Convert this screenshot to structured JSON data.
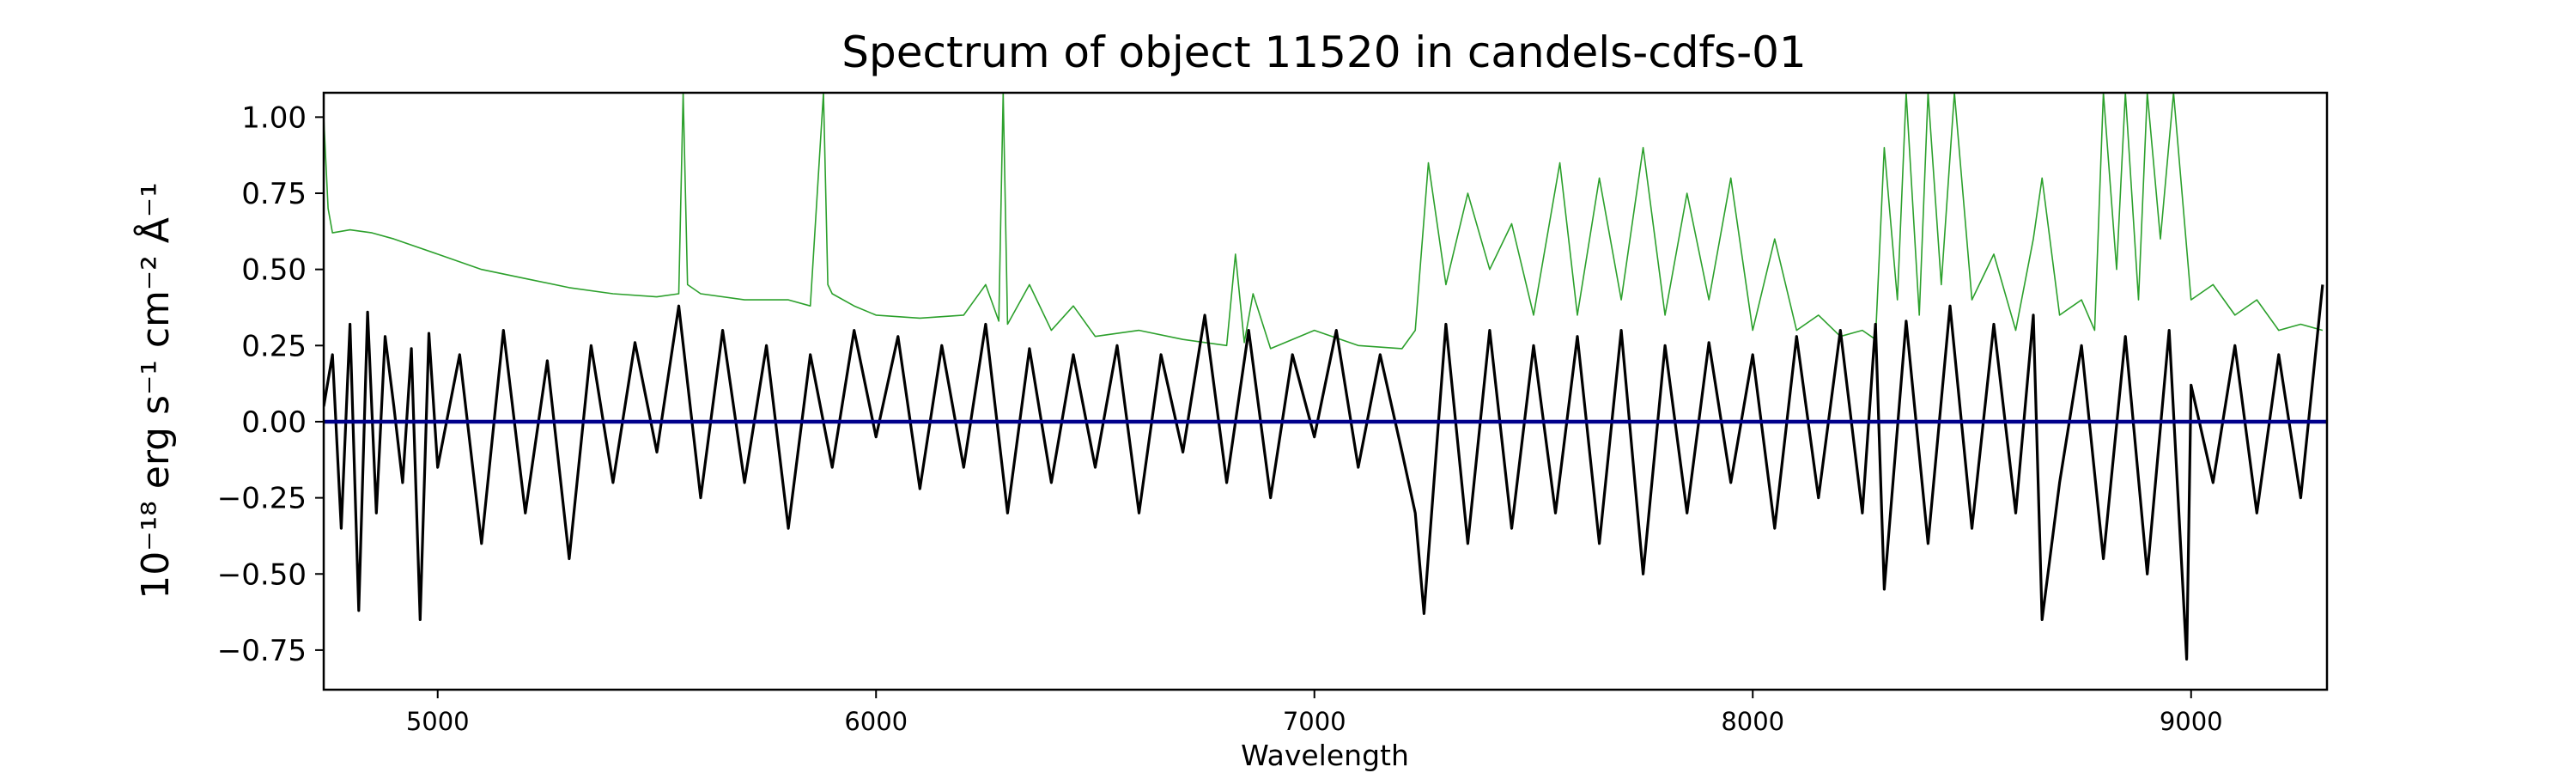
{
  "chart_data": {
    "type": "line",
    "title": "Spectrum of object 11520 in candels-cdfs-01",
    "xlabel": "Wavelength",
    "ylabel": "10⁻¹⁸ erg s⁻¹ cm⁻² Å⁻¹",
    "xlim": [
      4740,
      9310
    ],
    "ylim": [
      -0.88,
      1.08
    ],
    "xticks": [
      5000,
      6000,
      7000,
      8000,
      9000
    ],
    "xtick_labels": [
      "5000",
      "6000",
      "7000",
      "8000",
      "9000"
    ],
    "yticks": [
      -0.75,
      -0.5,
      -0.25,
      0.0,
      0.25,
      0.5,
      0.75,
      1.0
    ],
    "ytick_labels": [
      "−0.75",
      "−0.50",
      "−0.25",
      "0.00",
      "0.25",
      "0.50",
      "0.75",
      "1.00"
    ],
    "grid": false,
    "legend": false,
    "colors": {
      "flux": "#000000",
      "noise": "#2ca02c",
      "zero": "#00008b"
    },
    "series": [
      {
        "role": "flux",
        "x": [
          4740,
          4760,
          4780,
          4800,
          4820,
          4840,
          4860,
          4880,
          4900,
          4920,
          4940,
          4960,
          4980,
          5000,
          5050,
          5100,
          5150,
          5200,
          5250,
          5300,
          5350,
          5400,
          5450,
          5500,
          5550,
          5600,
          5650,
          5700,
          5750,
          5800,
          5850,
          5900,
          5950,
          6000,
          6050,
          6100,
          6150,
          6200,
          6250,
          6300,
          6350,
          6400,
          6450,
          6500,
          6550,
          6600,
          6650,
          6700,
          6750,
          6800,
          6850,
          6900,
          6950,
          7000,
          7050,
          7100,
          7150,
          7200,
          7230,
          7250,
          7300,
          7350,
          7400,
          7450,
          7500,
          7550,
          7600,
          7650,
          7700,
          7750,
          7800,
          7850,
          7900,
          7950,
          8000,
          8050,
          8100,
          8150,
          8200,
          8250,
          8280,
          8300,
          8350,
          8400,
          8450,
          8500,
          8550,
          8600,
          8640,
          8660,
          8700,
          8750,
          8800,
          8850,
          8900,
          8950,
          8990,
          9000,
          9050,
          9100,
          9150,
          9200,
          9250,
          9300
        ],
        "y": [
          0.05,
          0.22,
          -0.35,
          0.32,
          -0.62,
          0.36,
          -0.3,
          0.28,
          0.05,
          -0.2,
          0.24,
          -0.65,
          0.29,
          -0.15,
          0.22,
          -0.4,
          0.3,
          -0.3,
          0.2,
          -0.45,
          0.25,
          -0.2,
          0.26,
          -0.1,
          0.38,
          -0.25,
          0.3,
          -0.2,
          0.25,
          -0.35,
          0.22,
          -0.15,
          0.3,
          -0.05,
          0.28,
          -0.22,
          0.25,
          -0.15,
          0.32,
          -0.3,
          0.24,
          -0.2,
          0.22,
          -0.15,
          0.25,
          -0.3,
          0.22,
          -0.1,
          0.35,
          -0.2,
          0.3,
          -0.25,
          0.22,
          -0.05,
          0.3,
          -0.15,
          0.22,
          -0.1,
          -0.3,
          -0.63,
          0.32,
          -0.4,
          0.3,
          -0.35,
          0.25,
          -0.3,
          0.28,
          -0.4,
          0.3,
          -0.5,
          0.25,
          -0.3,
          0.26,
          -0.2,
          0.22,
          -0.35,
          0.28,
          -0.25,
          0.3,
          -0.3,
          0.32,
          -0.55,
          0.33,
          -0.4,
          0.38,
          -0.35,
          0.32,
          -0.3,
          0.35,
          -0.65,
          -0.2,
          0.25,
          -0.45,
          0.28,
          -0.5,
          0.3,
          -0.78,
          0.12,
          -0.2,
          0.25,
          -0.3,
          0.22,
          -0.25,
          0.45
        ]
      },
      {
        "role": "noise",
        "x": [
          4740,
          4750,
          4760,
          4800,
          4850,
          4900,
          5000,
          5100,
          5200,
          5300,
          5400,
          5500,
          5550,
          5560,
          5570,
          5600,
          5700,
          5800,
          5850,
          5880,
          5890,
          5900,
          5950,
          6000,
          6100,
          6200,
          6250,
          6280,
          6290,
          6300,
          6350,
          6400,
          6450,
          6500,
          6600,
          6700,
          6800,
          6820,
          6840,
          6860,
          6900,
          7000,
          7100,
          7200,
          7230,
          7260,
          7300,
          7350,
          7400,
          7450,
          7500,
          7560,
          7600,
          7650,
          7700,
          7750,
          7800,
          7850,
          7900,
          7950,
          8000,
          8050,
          8100,
          8150,
          8200,
          8250,
          8280,
          8300,
          8330,
          8350,
          8380,
          8400,
          8430,
          8460,
          8500,
          8550,
          8600,
          8640,
          8660,
          8700,
          8750,
          8780,
          8800,
          8830,
          8850,
          8880,
          8900,
          8930,
          8960,
          9000,
          9050,
          9100,
          9150,
          9200,
          9250,
          9300
        ],
        "y": [
          1.0,
          0.7,
          0.62,
          0.63,
          0.62,
          0.6,
          0.55,
          0.5,
          0.47,
          0.44,
          0.42,
          0.41,
          0.42,
          1.08,
          0.45,
          0.42,
          0.4,
          0.4,
          0.38,
          1.08,
          0.45,
          0.42,
          0.38,
          0.35,
          0.34,
          0.35,
          0.45,
          0.33,
          1.08,
          0.32,
          0.45,
          0.3,
          0.38,
          0.28,
          0.3,
          0.27,
          0.25,
          0.55,
          0.26,
          0.42,
          0.24,
          0.3,
          0.25,
          0.24,
          0.3,
          0.85,
          0.45,
          0.75,
          0.5,
          0.65,
          0.35,
          0.85,
          0.35,
          0.8,
          0.4,
          0.9,
          0.35,
          0.75,
          0.4,
          0.8,
          0.3,
          0.6,
          0.3,
          0.35,
          0.28,
          0.3,
          0.27,
          0.9,
          0.4,
          1.08,
          0.35,
          1.08,
          0.45,
          1.08,
          0.4,
          0.55,
          0.3,
          0.6,
          0.8,
          0.35,
          0.4,
          0.3,
          1.08,
          0.5,
          1.08,
          0.4,
          1.08,
          0.6,
          1.08,
          0.4,
          0.45,
          0.35,
          0.4,
          0.3,
          0.32,
          0.3
        ]
      },
      {
        "role": "zero",
        "x": [
          4740,
          9310
        ],
        "y": [
          0.0,
          0.0
        ]
      }
    ]
  }
}
